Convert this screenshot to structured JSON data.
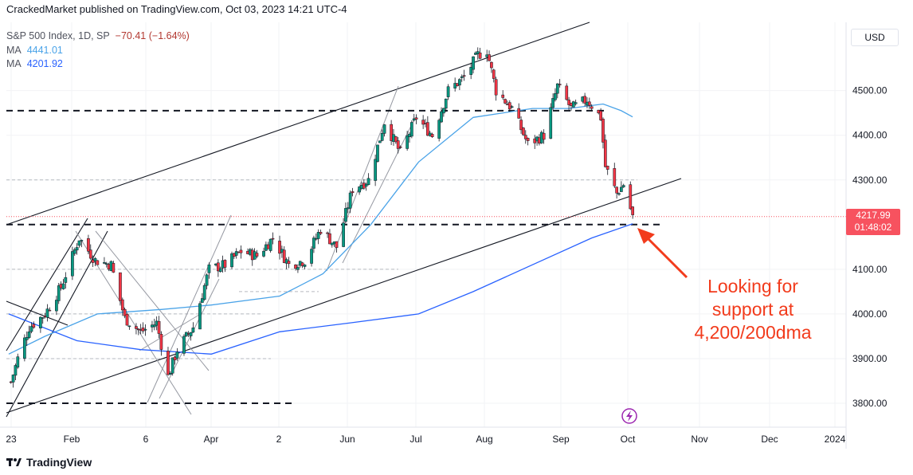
{
  "header": {
    "published_by": "CrackedMarket published on TradingView.com, Oct 03, 2023 14:21 UTC-4"
  },
  "legend": {
    "symbol": "S&P 500 Index, 1D, SP",
    "change": "−70.41 (−1.64%)",
    "ma1_label": "MA",
    "ma1_value": "4441.01",
    "ma2_label": "MA",
    "ma2_value": "4201.92"
  },
  "price_scale": {
    "currency": "USD",
    "last_price": "4217.99",
    "countdown": "01:48:02"
  },
  "annotation": {
    "line1": "Looking for",
    "line2": "support at",
    "line3": "4,200/200dma"
  },
  "footer": {
    "brand": "TradingView"
  },
  "colors": {
    "up": "#089981",
    "down": "#f23645",
    "ma_short": "#4aa3e8",
    "ma_long": "#2962ff",
    "annotation": "#f23b1c",
    "price_tag": "#f7525f"
  },
  "chart_data": {
    "type": "candlestick",
    "x_axis_labels": [
      "23",
      "Feb",
      "6",
      "Apr",
      "2",
      "Jun",
      "Jul",
      "Aug",
      "Sep",
      "Oct",
      "Nov",
      "Dec",
      "2024"
    ],
    "y_axis_labels": [
      "4500.00",
      "4400.00",
      "4300.00",
      "4100.00",
      "4000.00",
      "3900.00",
      "3800.00"
    ],
    "ylim": [
      3760,
      4630
    ],
    "close_path": [
      [
        "2023-01-02",
        3830
      ],
      [
        "2023-01-06",
        3900
      ],
      [
        "2023-01-11",
        3970
      ],
      [
        "2023-01-18",
        4000
      ],
      [
        "2023-01-25",
        4060
      ],
      [
        "2023-02-02",
        4170
      ],
      [
        "2023-02-09",
        4120
      ],
      [
        "2023-02-16",
        4110
      ],
      [
        "2023-02-22",
        3990
      ],
      [
        "2023-03-01",
        3960
      ],
      [
        "2023-03-08",
        3980
      ],
      [
        "2023-03-13",
        3860
      ],
      [
        "2023-03-17",
        3920
      ],
      [
        "2023-03-24",
        3970
      ],
      [
        "2023-03-31",
        4100
      ],
      [
        "2023-04-07",
        4110
      ],
      [
        "2023-04-14",
        4140
      ],
      [
        "2023-04-21",
        4130
      ],
      [
        "2023-04-28",
        4170
      ],
      [
        "2023-05-05",
        4110
      ],
      [
        "2023-05-12",
        4120
      ],
      [
        "2023-05-19",
        4190
      ],
      [
        "2023-05-26",
        4150
      ],
      [
        "2023-06-02",
        4280
      ],
      [
        "2023-06-09",
        4300
      ],
      [
        "2023-06-16",
        4430
      ],
      [
        "2023-06-23",
        4360
      ],
      [
        "2023-06-30",
        4440
      ],
      [
        "2023-07-07",
        4400
      ],
      [
        "2023-07-14",
        4500
      ],
      [
        "2023-07-21",
        4530
      ],
      [
        "2023-07-27",
        4580
      ],
      [
        "2023-07-31",
        4590
      ],
      [
        "2023-08-04",
        4500
      ],
      [
        "2023-08-11",
        4460
      ],
      [
        "2023-08-18",
        4380
      ],
      [
        "2023-08-25",
        4400
      ],
      [
        "2023-08-31",
        4510
      ],
      [
        "2023-09-06",
        4460
      ],
      [
        "2023-09-13",
        4480
      ],
      [
        "2023-09-19",
        4440
      ],
      [
        "2023-09-21",
        4330
      ],
      [
        "2023-09-26",
        4270
      ],
      [
        "2023-09-29",
        4290
      ],
      [
        "2023-10-03",
        4218
      ]
    ],
    "ma_4441": [
      [
        "2023-01-02",
        3910
      ],
      [
        "2023-01-18",
        3950
      ],
      [
        "2023-02-10",
        4000
      ],
      [
        "2023-03-10",
        4010
      ],
      [
        "2023-04-01",
        4020
      ],
      [
        "2023-05-01",
        4040
      ],
      [
        "2023-05-20",
        4090
      ],
      [
        "2023-06-10",
        4200
      ],
      [
        "2023-07-01",
        4340
      ],
      [
        "2023-07-25",
        4440
      ],
      [
        "2023-08-20",
        4460
      ],
      [
        "2023-09-05",
        4460
      ],
      [
        "2023-09-20",
        4470
      ],
      [
        "2023-09-28",
        4455
      ],
      [
        "2023-10-03",
        4441
      ]
    ],
    "ma_4201": [
      [
        "2023-01-02",
        4000
      ],
      [
        "2023-02-01",
        3940
      ],
      [
        "2023-03-01",
        3920
      ],
      [
        "2023-04-01",
        3910
      ],
      [
        "2023-05-01",
        3960
      ],
      [
        "2023-06-01",
        3980
      ],
      [
        "2023-07-01",
        4000
      ],
      [
        "2023-07-25",
        4050
      ],
      [
        "2023-08-20",
        4110
      ],
      [
        "2023-09-15",
        4170
      ],
      [
        "2023-10-03",
        4202
      ]
    ],
    "levels": [
      4455,
      4200,
      3800
    ],
    "support_label": "Looking for support at 4,200/200dma"
  }
}
